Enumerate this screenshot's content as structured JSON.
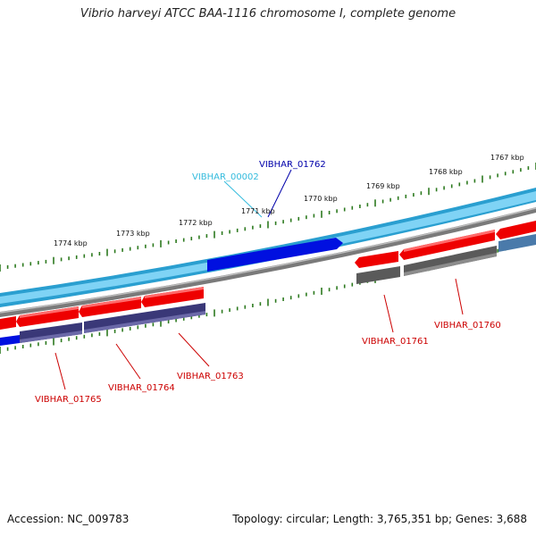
{
  "title": "Vibrio harveyi ATCC BAA-1116 chromosome I, complete genome",
  "accession": "Accession: NC_009783",
  "summary": "Topology: circular; Length: 3,765,351 bp; Genes: 3,688",
  "colors": {
    "outer_ring": "#2a9fd0",
    "outer_ring_light": "#7fd3f5",
    "highlight_gene": "#0010e0",
    "gray_ring": "#7a7a7a",
    "forward_gene": "#ee0000",
    "reverse_gene_dark": "#3a3878",
    "reverse_gene_gray": "#5a5a5a",
    "tick": "#2d7a1f",
    "label_cyan": "#33bbdd",
    "label_blue": "#0000aa",
    "label_red": "#cc0000"
  },
  "ticks_upper": [
    {
      "label": "1767 kbp"
    },
    {
      "label": "1768 kbp"
    },
    {
      "label": "1769 kbp"
    },
    {
      "label": "1770 kbp"
    },
    {
      "label": "1771 kbp"
    },
    {
      "label": "1772 kbp"
    },
    {
      "label": "1773 kbp"
    },
    {
      "label": "1774 kbp"
    }
  ],
  "gene_labels": [
    {
      "id": "VIBHAR_00002",
      "color": "label_cyan"
    },
    {
      "id": "VIBHAR_01762",
      "color": "label_blue"
    },
    {
      "id": "VIBHAR_01760",
      "color": "label_red"
    },
    {
      "id": "VIBHAR_01761",
      "color": "label_red"
    },
    {
      "id": "VIBHAR_01763",
      "color": "label_red"
    },
    {
      "id": "VIBHAR_01764",
      "color": "label_red"
    },
    {
      "id": "VIBHAR_01765",
      "color": "label_red"
    }
  ]
}
